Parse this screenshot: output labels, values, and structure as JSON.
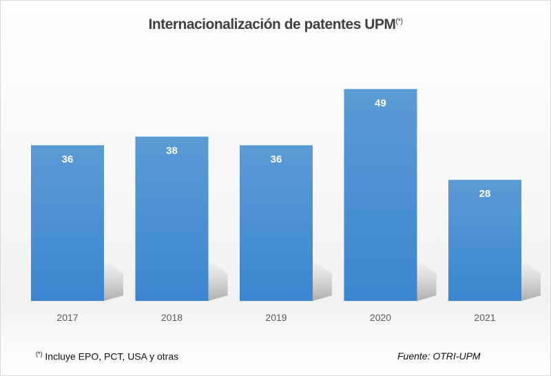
{
  "chart_data": {
    "type": "bar",
    "title": "Internacionalización de patentes UPM",
    "title_superscript": "(*)",
    "categories": [
      "2017",
      "2018",
      "2019",
      "2020",
      "2021"
    ],
    "values": [
      36,
      38,
      36,
      49,
      28
    ],
    "data_labels": true,
    "xlabel": "",
    "ylabel": "",
    "ylim": [
      0,
      50
    ],
    "grid": false,
    "bar_color": "#3b86d0",
    "bar_color_top": "#5b9bd5"
  },
  "footnote": {
    "marker": "(*)",
    "text": "Incluye EPO, PCT, USA y otras"
  },
  "source": "Fuente:  OTRI-UPM"
}
